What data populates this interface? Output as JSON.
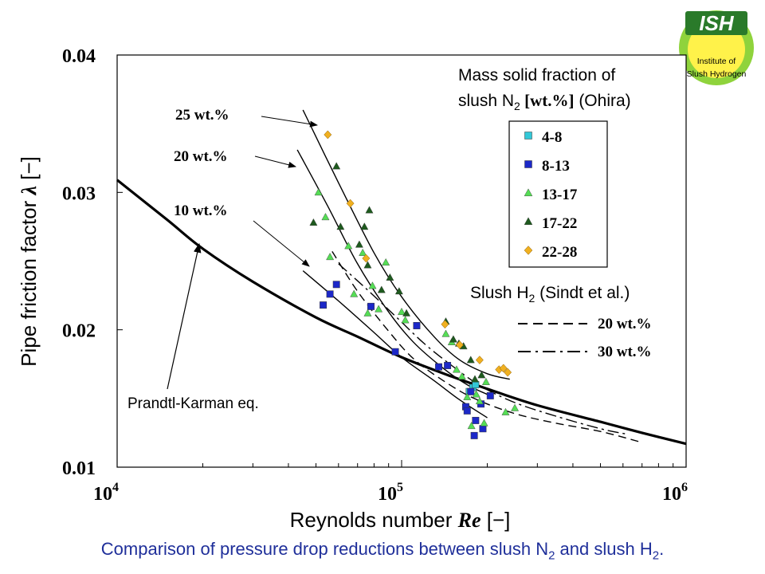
{
  "logo": {
    "title": "ISH",
    "line1": "Institute of",
    "line2": "Slush Hydrogen",
    "colors": {
      "outer": "#8fd33c",
      "inner": "#fff24a",
      "title_bg": "#2a7a2a",
      "title_text": "#ffffff"
    }
  },
  "caption": {
    "pre": "Comparison of pressure drop reductions between slush N",
    "sub": "2",
    "post": " and slush H",
    "sub2": "2",
    "end": "."
  },
  "chart_data": {
    "type": "scatter",
    "x_scale": "log",
    "xlim": [
      10000,
      1000000
    ],
    "ylim": [
      0.01,
      0.04
    ],
    "yticks": [
      "0.01",
      "0.02",
      "0.03",
      "0.04"
    ],
    "xticks": [
      {
        "value": 10000,
        "base": "10",
        "exp": "4"
      },
      {
        "value": 100000,
        "base": "10",
        "exp": "5"
      },
      {
        "value": 1000000,
        "base": "10",
        "exp": "6"
      }
    ],
    "xlabel": {
      "text": "Reynolds number ",
      "var": "Re",
      "unit": " [−]"
    },
    "ylabel": {
      "text": "Pipe friction factor ",
      "var": "λ",
      "unit": " [−]"
    },
    "legend_ohira": {
      "title_line1": "Mass solid fraction of",
      "title_line2_pre": "slush N",
      "title_line2_sub": "2",
      "title_line2_bold": " [wt.%]",
      "title_line2_post": " (Ohira)",
      "entries": [
        {
          "label": "4-8",
          "marker": "square",
          "color": "#32c8d8"
        },
        {
          "label": "8-13",
          "marker": "square",
          "color": "#1c28c8"
        },
        {
          "label": "13-17",
          "marker": "triangle",
          "color": "#55dd55"
        },
        {
          "label": "17-22",
          "marker": "triangle",
          "color": "#1e5a1e"
        },
        {
          "label": "22-28",
          "marker": "diamond",
          "color": "#f0b020"
        }
      ]
    },
    "legend_sindt": {
      "title_pre": "Slush H",
      "title_sub": "2",
      "title_post": " (Sindt et al.)",
      "entries": [
        {
          "label": "20 wt.%",
          "dash": "dashed"
        },
        {
          "label": "30 wt.%",
          "dash": "dashdot"
        }
      ]
    },
    "annotations": [
      {
        "text": "25 wt.%"
      },
      {
        "text": "20 wt.%"
      },
      {
        "text": "10 wt.%"
      },
      {
        "text": "Prandtl-Karman eq."
      }
    ],
    "series": [
      {
        "name": "4-8",
        "marker": "square",
        "color": "#32c8d8",
        "points": [
          [
            173000,
            0.0155
          ],
          [
            178000,
            0.0158
          ],
          [
            182000,
            0.016
          ]
        ]
      },
      {
        "name": "8-13",
        "marker": "square",
        "color": "#1c28c8",
        "points": [
          [
            53000,
            0.0218
          ],
          [
            56000,
            0.0226
          ],
          [
            59000,
            0.0233
          ],
          [
            78000,
            0.0217
          ],
          [
            95000,
            0.0184
          ],
          [
            113000,
            0.0203
          ],
          [
            135000,
            0.0173
          ],
          [
            145000,
            0.0174
          ],
          [
            168000,
            0.0144
          ],
          [
            170000,
            0.0141
          ],
          [
            175000,
            0.0155
          ],
          [
            180000,
            0.0123
          ],
          [
            182000,
            0.0134
          ],
          [
            190000,
            0.0146
          ],
          [
            193000,
            0.0128
          ],
          [
            205000,
            0.0152
          ]
        ]
      },
      {
        "name": "13-17",
        "marker": "triangle",
        "color": "#55dd55",
        "points": [
          [
            51000,
            0.03
          ],
          [
            54000,
            0.0282
          ],
          [
            56000,
            0.0253
          ],
          [
            65000,
            0.0261
          ],
          [
            68000,
            0.0226
          ],
          [
            73000,
            0.0256
          ],
          [
            76000,
            0.0212
          ],
          [
            79000,
            0.0232
          ],
          [
            83000,
            0.0215
          ],
          [
            88000,
            0.0249
          ],
          [
            100000,
            0.0213
          ],
          [
            103000,
            0.0207
          ],
          [
            143000,
            0.0197
          ],
          [
            150000,
            0.0191
          ],
          [
            156000,
            0.0171
          ],
          [
            163000,
            0.0166
          ],
          [
            170000,
            0.0151
          ],
          [
            176000,
            0.013
          ],
          [
            183000,
            0.0153
          ],
          [
            188000,
            0.0148
          ],
          [
            195000,
            0.0132
          ],
          [
            198000,
            0.0162
          ],
          [
            232000,
            0.014
          ],
          [
            250000,
            0.0143
          ]
        ]
      },
      {
        "name": "17-22",
        "marker": "triangle",
        "color": "#1e5a1e",
        "points": [
          [
            49000,
            0.0278
          ],
          [
            59000,
            0.0319
          ],
          [
            61000,
            0.0275
          ],
          [
            71000,
            0.0262
          ],
          [
            74000,
            0.0275
          ],
          [
            77000,
            0.0287
          ],
          [
            76000,
            0.0247
          ],
          [
            85000,
            0.0229
          ],
          [
            91000,
            0.0238
          ],
          [
            98000,
            0.0228
          ],
          [
            104000,
            0.0212
          ],
          [
            143000,
            0.0206
          ],
          [
            152000,
            0.0193
          ],
          [
            159000,
            0.019
          ],
          [
            165000,
            0.0188
          ],
          [
            175000,
            0.0178
          ],
          [
            181000,
            0.0164
          ],
          [
            191000,
            0.0167
          ]
        ]
      },
      {
        "name": "22-28",
        "marker": "diamond",
        "color": "#f0b020",
        "points": [
          [
            55000,
            0.0342
          ],
          [
            66000,
            0.0292
          ],
          [
            75000,
            0.0252
          ],
          [
            142000,
            0.0204
          ],
          [
            160000,
            0.0189
          ],
          [
            188000,
            0.0178
          ],
          [
            220000,
            0.0171
          ],
          [
            228000,
            0.0172
          ],
          [
            236000,
            0.0169
          ]
        ]
      }
    ],
    "curves": [
      {
        "name": "25 wt.% fit",
        "style": "solid",
        "points": [
          [
            45000,
            0.036
          ],
          [
            60000,
            0.0307
          ],
          [
            80000,
            0.0256
          ],
          [
            100000,
            0.0224
          ],
          [
            130000,
            0.0195
          ],
          [
            160000,
            0.0178
          ],
          [
            200000,
            0.0168
          ],
          [
            240000,
            0.0164
          ]
        ]
      },
      {
        "name": "20 wt.% fit",
        "style": "solid",
        "points": [
          [
            43000,
            0.0331
          ],
          [
            55000,
            0.029
          ],
          [
            70000,
            0.0248
          ],
          [
            90000,
            0.0213
          ],
          [
            110000,
            0.0191
          ],
          [
            140000,
            0.0172
          ],
          [
            170000,
            0.016
          ],
          [
            200000,
            0.0153
          ]
        ]
      },
      {
        "name": "10 wt.% fit",
        "style": "solid",
        "points": [
          [
            45000,
            0.0243
          ],
          [
            60000,
            0.0221
          ],
          [
            80000,
            0.0198
          ],
          [
            100000,
            0.018
          ],
          [
            130000,
            0.0163
          ],
          [
            160000,
            0.0149
          ],
          [
            200000,
            0.0136
          ]
        ]
      },
      {
        "name": "Sindt 20 wt.%",
        "style": "dashed",
        "points": [
          [
            57000,
            0.0257
          ],
          [
            70000,
            0.0228
          ],
          [
            90000,
            0.0199
          ],
          [
            110000,
            0.0179
          ],
          [
            140000,
            0.0163
          ],
          [
            180000,
            0.015
          ],
          [
            250000,
            0.0139
          ],
          [
            350000,
            0.0132
          ],
          [
            500000,
            0.0126
          ],
          [
            700000,
            0.0118
          ]
        ]
      },
      {
        "name": "Sindt 30 wt.%",
        "style": "dashdot",
        "points": [
          [
            60000,
            0.0248
          ],
          [
            75000,
            0.023
          ],
          [
            95000,
            0.021
          ],
          [
            120000,
            0.019
          ],
          [
            150000,
            0.0174
          ],
          [
            190000,
            0.0159
          ],
          [
            250000,
            0.0147
          ],
          [
            350000,
            0.0137
          ],
          [
            500000,
            0.0128
          ],
          [
            620000,
            0.0124
          ]
        ]
      },
      {
        "name": "Prandtl-Karman eq.",
        "style": "bold",
        "points": [
          [
            10000,
            0.0309
          ],
          [
            15000,
            0.028
          ],
          [
            20000,
            0.0259
          ],
          [
            30000,
            0.0235
          ],
          [
            50000,
            0.0209
          ],
          [
            70000,
            0.0195
          ],
          [
            100000,
            0.018
          ],
          [
            150000,
            0.0166
          ],
          [
            200000,
            0.0157
          ],
          [
            300000,
            0.0145
          ],
          [
            500000,
            0.0133
          ],
          [
            700000,
            0.0125
          ],
          [
            1000000,
            0.0117
          ]
        ]
      }
    ]
  }
}
